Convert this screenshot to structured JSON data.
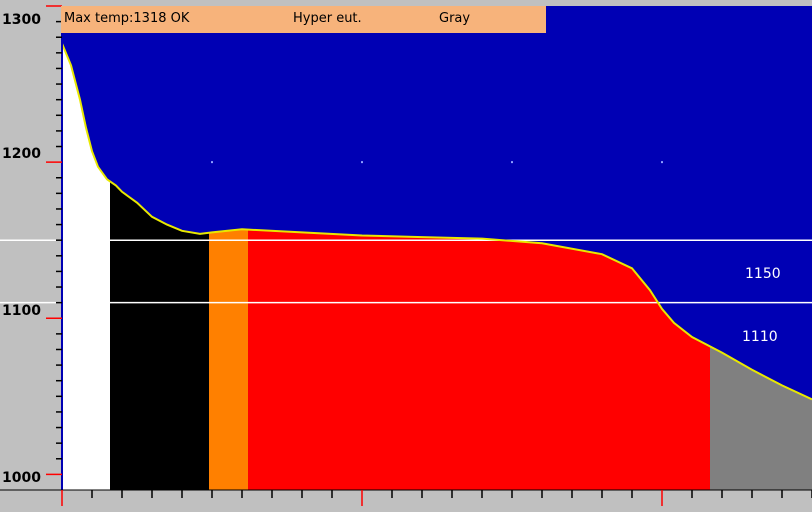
{
  "status": {
    "max_temp": "Max temp:1318 OK",
    "classification": "Hyper eut.",
    "iron_type": "Gray",
    "background_color": "#f7b37b"
  },
  "colors": {
    "background": "#0000b4",
    "curve": "#e8e800",
    "liquid": "#ffffff",
    "primary": "#000000",
    "transition": "#ff8000",
    "eutectic": "#ff0000",
    "solid": "#808080",
    "reference_line": "#ffffff",
    "axis": "#c0c0c0",
    "marker": "#ff0000"
  },
  "chart_data": {
    "type": "area",
    "title": "",
    "xlabel": "",
    "ylabel": "",
    "ylim": [
      990,
      1300
    ],
    "xlim": [
      0,
      250
    ],
    "y_ticks": [
      {
        "value": 1300,
        "label": "1300"
      },
      {
        "value": 1200,
        "label": "1200"
      },
      {
        "value": 1100,
        "label": "1100"
      },
      {
        "value": 1000,
        "label": "1000"
      }
    ],
    "x_major_ticks": [
      0,
      100,
      200
    ],
    "x_minor_step": 10,
    "reference_lines": [
      {
        "value": 1150,
        "label": "1150"
      },
      {
        "value": 1110,
        "label": "1110"
      }
    ],
    "curve": [
      [
        0,
        1276
      ],
      [
        3,
        1262
      ],
      [
        6,
        1240
      ],
      [
        8,
        1222
      ],
      [
        10,
        1207
      ],
      [
        12,
        1197
      ],
      [
        15,
        1189
      ],
      [
        18,
        1185
      ],
      [
        20,
        1181
      ],
      [
        25,
        1174
      ],
      [
        30,
        1165
      ],
      [
        35,
        1160
      ],
      [
        40,
        1156
      ],
      [
        46,
        1154
      ],
      [
        50,
        1155
      ],
      [
        60,
        1157
      ],
      [
        80,
        1155
      ],
      [
        100,
        1153
      ],
      [
        120,
        1152
      ],
      [
        140,
        1151
      ],
      [
        160,
        1148
      ],
      [
        180,
        1141
      ],
      [
        190,
        1132
      ],
      [
        196,
        1118
      ],
      [
        200,
        1106
      ],
      [
        204,
        1097
      ],
      [
        210,
        1088
      ],
      [
        220,
        1078
      ],
      [
        230,
        1067
      ],
      [
        240,
        1057
      ],
      [
        250,
        1048
      ]
    ],
    "regions": [
      {
        "name": "liquid",
        "x_start": 0,
        "x_end": 16
      },
      {
        "name": "primary",
        "x_start": 16,
        "x_end": 49
      },
      {
        "name": "transition",
        "x_start": 49,
        "x_end": 62
      },
      {
        "name": "eutectic",
        "x_start": 62,
        "x_end": 216
      },
      {
        "name": "solid",
        "x_start": 216,
        "x_end": 250
      }
    ]
  }
}
